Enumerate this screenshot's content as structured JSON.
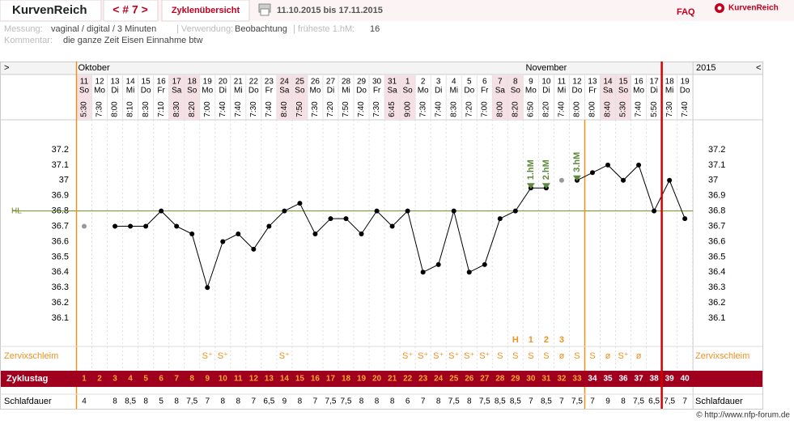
{
  "header": {
    "brand": "KurvenReich",
    "nav": "< # 7 >",
    "overview": "Zyklenübersicht",
    "range": "11.10.2015 bis 17.11.2015",
    "faq": "FAQ",
    "logo": "KurvenReich"
  },
  "info": {
    "measure_label": "Messung:",
    "measure": "vaginal / digital / 3 Minuten",
    "use_label": "| Verwendung:",
    "use": "Beobachtung",
    "first_label": "| früheste 1.hM:",
    "first": "16",
    "comment_label": "Kommentar:",
    "comment": "die ganze Zeit Eisen Einnahme btw"
  },
  "chart_data": {
    "type": "line",
    "nav_left": ">",
    "nav_right": "<",
    "year": "2015",
    "months": [
      "Oktober",
      "November"
    ],
    "days": [
      "11",
      "12",
      "13",
      "14",
      "15",
      "16",
      "17",
      "18",
      "19",
      "20",
      "21",
      "22",
      "23",
      "24",
      "25",
      "26",
      "27",
      "28",
      "29",
      "30",
      "31",
      "1",
      "2",
      "3",
      "4",
      "5",
      "6",
      "7",
      "8",
      "9",
      "10",
      "11",
      "12",
      "13",
      "14",
      "15",
      "16",
      "17",
      "18",
      "19"
    ],
    "weekdays": [
      "So",
      "Mo",
      "Di",
      "Mi",
      "Do",
      "Fr",
      "Sa",
      "So",
      "Mo",
      "Di",
      "Mi",
      "Do",
      "Fr",
      "Sa",
      "So",
      "Mo",
      "Di",
      "Mi",
      "Do",
      "Fr",
      "Sa",
      "So",
      "Mo",
      "Di",
      "Mi",
      "Do",
      "Fr",
      "Sa",
      "So",
      "Mo",
      "Di",
      "Mi",
      "Do",
      "Fr",
      "Sa",
      "So",
      "Mo",
      "Di",
      "Mi",
      "Do"
    ],
    "times": [
      "5:30",
      "7:30",
      "8:00",
      "8:10",
      "8:30",
      "7:10",
      "8:30",
      "8:20",
      "7:00",
      "7:40",
      "7:40",
      "7:30",
      "7:40",
      "8:40",
      "7:50",
      "7:30",
      "7:20",
      "7:50",
      "7:40",
      "7:30",
      "6:45",
      "9:00",
      "7:30",
      "7:40",
      "8:30",
      "7:20",
      "7:00",
      "8:00",
      "8:20",
      "6:50",
      "8:20",
      "7:40",
      "8:00",
      "8:00",
      "8:40",
      "5:30",
      "7:40",
      "5:50",
      "7:30",
      "7:40"
    ],
    "color": "#000000",
    "excluded_color": "#999999",
    "values": [
      null,
      null,
      36.7,
      36.7,
      36.7,
      36.8,
      36.7,
      36.65,
      36.3,
      36.6,
      36.65,
      36.55,
      36.7,
      36.8,
      36.85,
      36.65,
      36.75,
      36.75,
      36.65,
      36.8,
      36.7,
      36.8,
      36.4,
      36.45,
      36.8,
      36.4,
      36.45,
      36.75,
      36.8,
      36.95,
      36.95,
      null,
      37.0,
      37.05,
      37.1,
      37.0,
      37.1,
      36.8,
      37.0,
      36.75
    ],
    "excluded_values": [
      36.7,
      null,
      null,
      null,
      null,
      null,
      null,
      null,
      null,
      null,
      null,
      null,
      null,
      null,
      null,
      null,
      null,
      null,
      null,
      null,
      null,
      null,
      null,
      null,
      null,
      null,
      null,
      null,
      null,
      null,
      null,
      37.0,
      null,
      null,
      null,
      null,
      null,
      null,
      null,
      null
    ],
    "peak_labels": [
      null,
      null,
      null,
      null,
      null,
      null,
      null,
      null,
      null,
      null,
      null,
      null,
      null,
      null,
      null,
      null,
      null,
      null,
      null,
      null,
      null,
      null,
      null,
      null,
      null,
      null,
      null,
      null,
      null,
      "1.hM",
      "2.hM",
      null,
      "3.hM",
      null,
      null,
      null,
      null,
      null,
      null,
      null
    ],
    "ylim": [
      36.0,
      37.3
    ],
    "yticks": [
      36.1,
      36.2,
      36.3,
      36.4,
      36.5,
      36.6,
      36.7,
      36.8,
      36.9,
      37,
      37.1,
      37.2
    ],
    "cover_line": {
      "label": "HL",
      "value": 36.8,
      "color": "#6b8e23"
    },
    "cervix_label": "Zervixschleim",
    "cervix_marks": [
      null,
      null,
      null,
      null,
      null,
      null,
      null,
      null,
      null,
      null,
      null,
      null,
      null,
      null,
      null,
      null,
      null,
      null,
      null,
      null,
      null,
      null,
      null,
      null,
      null,
      null,
      null,
      null,
      "H",
      "1",
      "2",
      "3",
      null,
      null,
      null,
      null,
      null,
      null,
      null,
      null
    ],
    "cervix": [
      null,
      null,
      null,
      null,
      null,
      null,
      null,
      null,
      "S⁺",
      "S⁺",
      null,
      null,
      null,
      "S⁺",
      null,
      null,
      null,
      null,
      null,
      null,
      null,
      "S⁺",
      "S⁺",
      "S⁺",
      "S⁺",
      "S⁺",
      "S⁺",
      "S",
      "S",
      "S",
      "S",
      "ø",
      "S",
      "S",
      "ø",
      "S⁺",
      "ø",
      null,
      null,
      null
    ],
    "cycle_label": "Zyklustag",
    "cycle_days": [
      1,
      2,
      3,
      4,
      5,
      6,
      7,
      8,
      9,
      10,
      11,
      12,
      13,
      14,
      15,
      16,
      17,
      18,
      19,
      20,
      21,
      22,
      23,
      24,
      25,
      26,
      27,
      28,
      29,
      30,
      31,
      32,
      33,
      34,
      35,
      36,
      37,
      38,
      39,
      40
    ],
    "fertile_end_day": 33,
    "today_day": 38,
    "sleep_label": "Schlafdauer",
    "sleep": [
      "4",
      null,
      "8",
      "8,5",
      "8",
      "5",
      "8",
      "7,5",
      "7",
      "8",
      "8",
      "7",
      "6,5",
      "9",
      "8",
      "7",
      "7,5",
      "7,5",
      "8",
      "8",
      "8",
      "6",
      "7",
      "8",
      "7,5",
      "8",
      "7,5",
      "8,5",
      "8,5",
      "7",
      "8,5",
      "7",
      "7,5",
      "7",
      "9",
      "8",
      "7,5",
      "6,5",
      "7,5",
      "7"
    ]
  },
  "footer": "© http://www.nfp-forum.de"
}
